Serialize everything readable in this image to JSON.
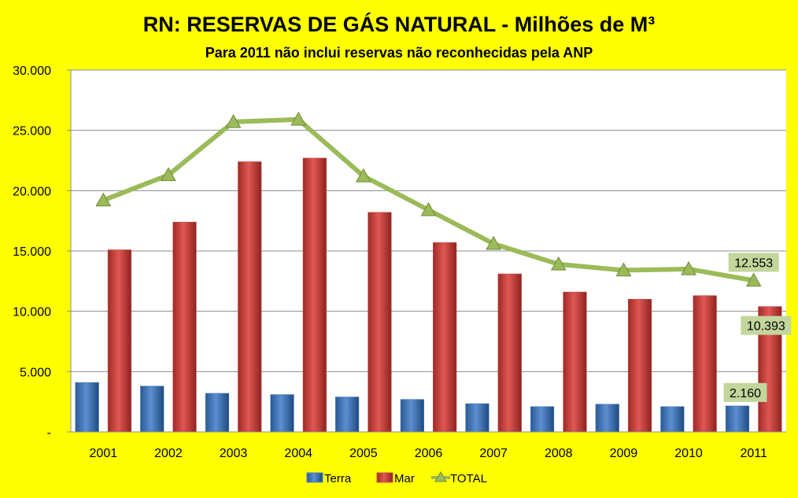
{
  "chart_data": {
    "type": "bar",
    "title": "RN: RESERVAS DE GÁS NATURAL  - Milhões de M³",
    "subtitle": "Para 2011 não inclui reservas não reconhecidas pela ANP",
    "categories": [
      "2001",
      "2002",
      "2003",
      "2004",
      "2005",
      "2006",
      "2007",
      "2008",
      "2009",
      "2010",
      "2011"
    ],
    "ylim": [
      0,
      30000
    ],
    "yticks": [
      0,
      5000,
      10000,
      15000,
      20000,
      25000,
      30000
    ],
    "ytick_labels": [
      "-",
      "5.000",
      "10.000",
      "15.000",
      "20.000",
      "25.000",
      "30.000"
    ],
    "grid": true,
    "legend_position": "bottom",
    "series": [
      {
        "name": "Terra",
        "kind": "bar",
        "color": "#4f81bd",
        "values": [
          4100,
          3800,
          3200,
          3100,
          2900,
          2700,
          2350,
          2100,
          2300,
          2100,
          2160
        ]
      },
      {
        "name": "Mar",
        "kind": "bar",
        "color": "#c0504d",
        "values": [
          15100,
          17400,
          22400,
          22700,
          18200,
          15700,
          13100,
          11600,
          11000,
          11300,
          10393
        ]
      },
      {
        "name": "TOTAL",
        "kind": "line",
        "color": "#9bbb59",
        "values": [
          19200,
          21300,
          25700,
          25900,
          21200,
          18400,
          15600,
          13900,
          13400,
          13500,
          12553
        ]
      }
    ],
    "data_labels": [
      {
        "series": "TOTAL",
        "category": "2011",
        "text": "12.553"
      },
      {
        "series": "Mar",
        "category": "2011",
        "text": "10.393"
      },
      {
        "series": "Terra",
        "category": "2011",
        "text": "2.160"
      }
    ]
  }
}
